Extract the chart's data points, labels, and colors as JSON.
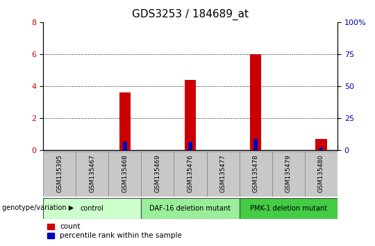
{
  "title": "GDS3253 / 184689_at",
  "samples": [
    "GSM135395",
    "GSM135467",
    "GSM135468",
    "GSM135469",
    "GSM135476",
    "GSM135477",
    "GSM135478",
    "GSM135479",
    "GSM135480"
  ],
  "red_values": [
    0,
    0,
    3.6,
    0,
    4.4,
    0,
    6.0,
    0,
    0.7
  ],
  "blue_percentile": [
    0,
    0,
    6.5,
    0,
    6.5,
    0,
    8.5,
    0,
    2.0
  ],
  "ylim_left": [
    0,
    8
  ],
  "ylim_right": [
    0,
    100
  ],
  "left_ticks": [
    0,
    2,
    4,
    6,
    8
  ],
  "right_ticks": [
    0,
    25,
    50,
    75,
    100
  ],
  "gridlines": [
    2,
    4,
    6
  ],
  "groups": [
    {
      "label": "control",
      "start": 0,
      "end": 3,
      "color": "#ccffcc"
    },
    {
      "label": "DAF-16 deletion mutant",
      "start": 3,
      "end": 6,
      "color": "#99ee99"
    },
    {
      "label": "PMK-1 deletion mutant",
      "start": 6,
      "end": 9,
      "color": "#44cc44"
    }
  ],
  "group_label": "genotype/variation",
  "legend_red": "count",
  "legend_blue": "percentile rank within the sample",
  "red_color": "#cc0000",
  "blue_color": "#0000bb",
  "tick_color_left": "#cc0000",
  "tick_color_right": "#0000bb",
  "title_fontsize": 11,
  "bar_width": 0.35,
  "blue_bar_width": 0.12,
  "sample_box_color": "#c8c8c8",
  "sample_box_edge": "#888888"
}
